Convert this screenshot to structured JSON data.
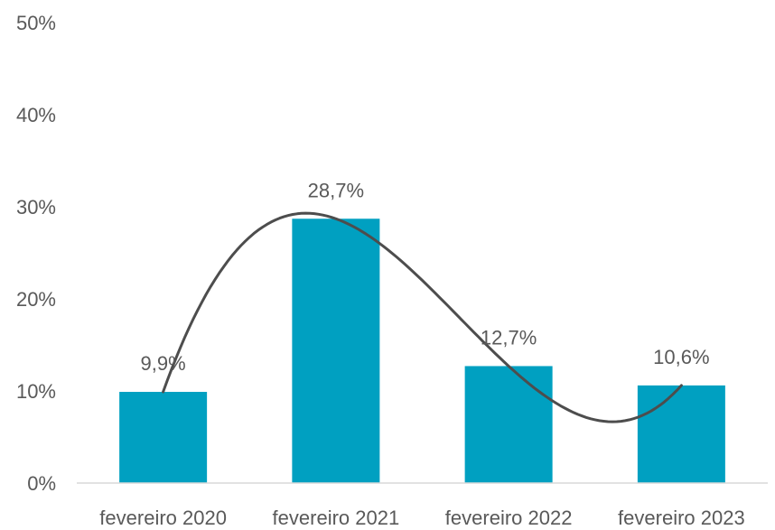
{
  "chart_data": {
    "type": "bar",
    "categories": [
      "fevereiro  2020",
      "fevereiro 2021",
      "fevereiro  2022",
      "fevereiro  2023"
    ],
    "values": [
      9.9,
      28.7,
      12.7,
      10.6
    ],
    "data_labels": [
      "9,9%",
      "28,7%",
      "12,7%",
      "10,6%"
    ],
    "title": "",
    "xlabel": "",
    "ylabel": "",
    "ylim": [
      0,
      50
    ],
    "yticks": [
      0,
      10,
      20,
      30,
      40,
      50
    ],
    "ytick_labels": [
      "0%",
      "10%",
      "20%",
      "30%",
      "40%",
      "50%"
    ],
    "grid": false,
    "legend": "none",
    "trendline": {
      "type": "polynomial",
      "color": "#4d4d4d"
    },
    "colors": {
      "bar": "#00A0C1",
      "text": "#595959",
      "axis": "#d9d9d9"
    }
  }
}
